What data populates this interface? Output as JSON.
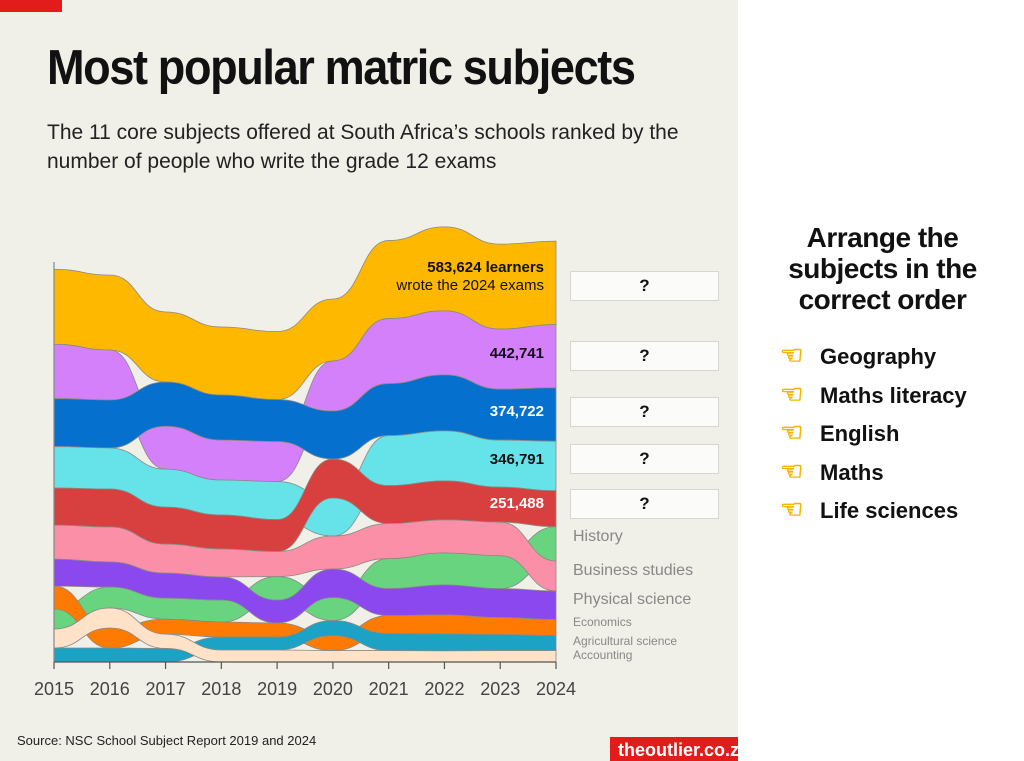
{
  "header": {
    "title": "Most popular matric subjects",
    "subtitle": "The 11 core subjects offered at South Africa’s schools ranked by the number of people who write the grade 12 exams"
  },
  "chart_data": {
    "type": "area",
    "subtype": "ranked stacked stream (bump) chart",
    "x": [
      2015,
      2016,
      2017,
      2018,
      2019,
      2020,
      2021,
      2022,
      2023,
      2024
    ],
    "ylabel": "",
    "xlabel": "",
    "unit": "learners (thousands, estimated except 2024 labels)",
    "grid": false,
    "series": [
      {
        "color": "#ffb800",
        "values": [
          525,
          525,
          490,
          476,
          476,
          434,
          546,
          588,
          595,
          583.624
        ]
      },
      {
        "color": "#d580fb",
        "values": [
          380,
          350,
          300,
          280,
          280,
          350,
          455,
          448,
          420,
          442.741
        ]
      },
      {
        "color": "#0570cd",
        "values": [
          336,
          336,
          310,
          315,
          294,
          336,
          364,
          392,
          357,
          374.722
        ]
      },
      {
        "color": "#66e3e8",
        "values": [
          290,
          287,
          266,
          245,
          266,
          266,
          350,
          350,
          329,
          346.791
        ]
      },
      {
        "color": "#d84040",
        "values": [
          260,
          266,
          259,
          238,
          224,
          273,
          266,
          273,
          245,
          251.488
        ]
      },
      {
        "name": "History",
        "color": "#68d480",
        "values": [
          140,
          147,
          147,
          154,
          165,
          161,
          210,
          224,
          230,
          240
        ]
      },
      {
        "name": "Business studies",
        "color": "#fb8fa8",
        "values": [
          238,
          245,
          203,
          196,
          175,
          231,
          245,
          231,
          235,
          210
        ]
      },
      {
        "name": "Physical science",
        "color": "#8b48ef",
        "values": [
          189,
          175,
          175,
          161,
          160,
          200,
          189,
          210,
          203,
          200
        ]
      },
      {
        "name": "Economics",
        "color": "#ff7a00",
        "values": [
          160,
          140,
          105,
          105,
          98,
          105,
          126,
          133,
          119,
          112
        ]
      },
      {
        "name": "Agricultural science",
        "color": "#1ba2c4",
        "values": [
          98,
          98,
          95,
          91,
          91,
          105,
          119,
          119,
          112,
          105
        ]
      },
      {
        "name": "Accounting",
        "color": "#ffe2c8",
        "values": [
          133,
          140,
          100,
          84,
          84,
          80,
          80,
          78,
          80,
          80
        ]
      }
    ],
    "value_labels_2024": {
      "top_line1": "583,624 learners",
      "top_line2": "wrote the 2024 exams",
      "second": "442,741",
      "third": "374,722",
      "fourth": "346,791",
      "fifth": "251,488"
    },
    "series_labels": [
      "History",
      "Business studies",
      "Physical science",
      "Economics",
      "Agricultural science",
      "Accounting"
    ]
  },
  "answer_slots": [
    "?",
    "?",
    "?",
    "?",
    "?"
  ],
  "quiz": {
    "title": "Arrange the subjects in the correct order",
    "pointer_icon": "backhand-index-pointing-left",
    "items": [
      "Geography",
      "Maths literacy",
      "English",
      "Maths",
      "Life sciences"
    ]
  },
  "footer": {
    "source": "Source: NSC School Subject Report 2019 and 2024",
    "brand": "theoutlier.co.za"
  },
  "colors": {
    "brand_red": "#e21b1b",
    "panel_bg": "#f0efe8"
  }
}
